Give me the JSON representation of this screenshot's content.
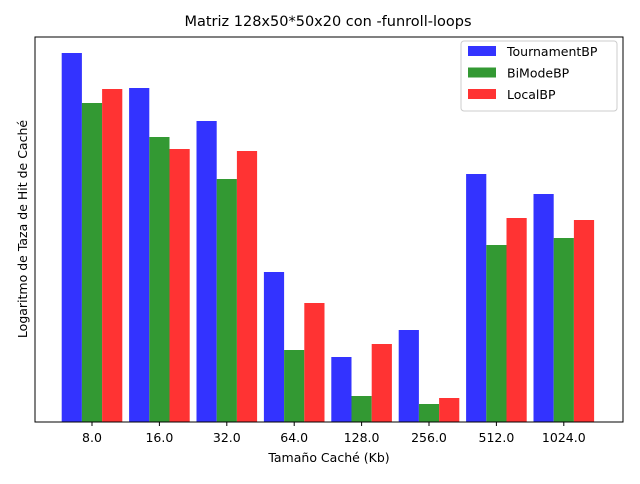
{
  "chart_data": {
    "type": "bar",
    "title": "Matriz 128x50*50x20 con -funroll-loops",
    "xlabel": "Tamaño Caché (Kb)",
    "ylabel": "Logaritmo de Taza de Hit de Caché",
    "categories": [
      "8.0",
      "16.0",
      "32.0",
      "64.0",
      "128.0",
      "256.0",
      "512.0",
      "1024.0"
    ],
    "series": [
      {
        "name": "TournamentBP",
        "color": "#3333ff",
        "values": [
          369,
          334,
          301,
          150,
          65,
          92,
          248,
          228
        ]
      },
      {
        "name": "BiModeBP",
        "color": "#339933",
        "values": [
          319,
          285,
          243,
          72,
          26,
          18,
          177,
          184
        ]
      },
      {
        "name": "LocalBP",
        "color": "#ff3333",
        "values": [
          333,
          273,
          271,
          119,
          78,
          24,
          204,
          202
        ]
      }
    ],
    "ylim": [
      0,
      385
    ],
    "y_ticks_visible": false,
    "grid": false,
    "legend_position": "top-right"
  }
}
